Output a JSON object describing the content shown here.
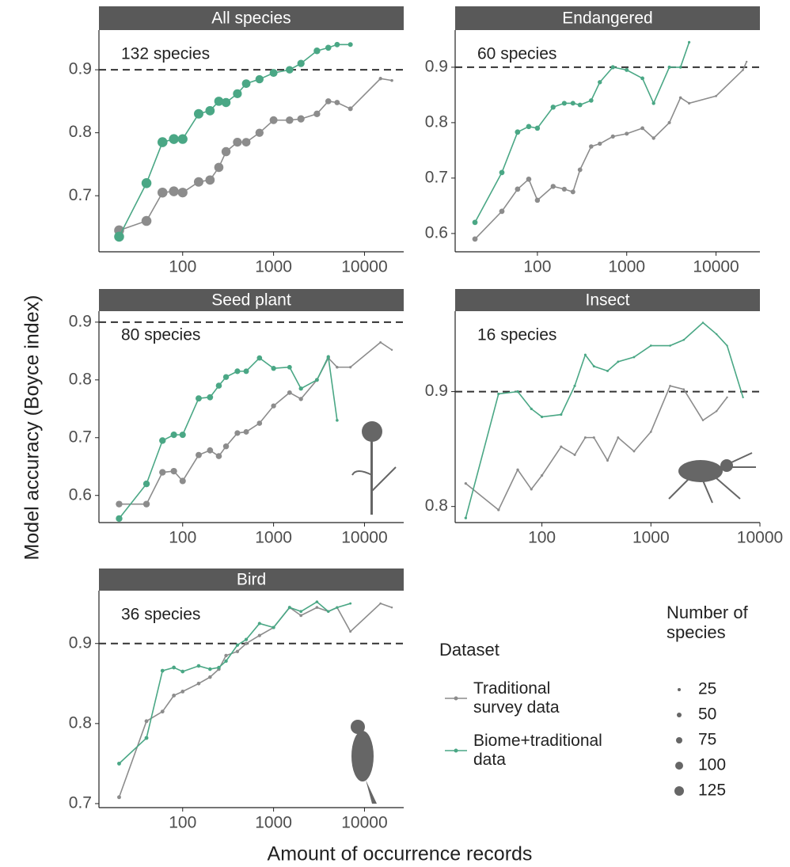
{
  "y_label": "Model accuracy (Boyce index)",
  "x_label": "Amount of occurrence records",
  "legend": {
    "title": "Dataset",
    "size_title": "Number of species",
    "sizes": [
      25,
      50,
      75,
      100,
      125
    ]
  },
  "chart_data": [
    {
      "type": "line",
      "title": "All species",
      "annotation": "132 species",
      "log_x": true,
      "hline": 0.9,
      "xlim": [
        12,
        27000
      ],
      "xticks": [
        100,
        1000,
        10000
      ],
      "ylim": [
        0.611,
        0.963
      ],
      "yticks": [
        0.7,
        0.8,
        0.9
      ],
      "x": [
        20,
        40,
        60,
        80,
        100,
        150,
        200,
        250,
        300,
        400,
        500,
        700,
        1000,
        1500,
        2000,
        3000,
        4000,
        5000,
        7000,
        15000,
        20000
      ],
      "sizes": [
        132,
        132,
        132,
        130,
        128,
        125,
        122,
        120,
        118,
        115,
        110,
        105,
        100,
        95,
        90,
        80,
        70,
        60,
        50,
        30,
        20
      ],
      "series": [
        {
          "name": "Traditional survey data",
          "color": "#8c8c8c",
          "values": [
            0.645,
            0.66,
            0.705,
            0.707,
            0.705,
            0.722,
            0.725,
            0.745,
            0.77,
            0.785,
            0.785,
            0.8,
            0.82,
            0.82,
            0.822,
            0.83,
            0.85,
            0.848,
            0.838,
            0.886,
            0.883
          ]
        },
        {
          "name": "Biome+traditional data",
          "color": "#4aa785",
          "values": [
            0.635,
            0.72,
            0.785,
            0.79,
            0.79,
            0.83,
            0.835,
            0.85,
            0.848,
            0.862,
            0.878,
            0.885,
            0.895,
            0.9,
            0.91,
            0.93,
            0.935,
            0.94,
            0.94,
            null,
            null
          ]
        }
      ]
    },
    {
      "type": "line",
      "title": "Endangered",
      "annotation": "60 species",
      "log_x": true,
      "hline": 0.9,
      "xlim": [
        12,
        31000
      ],
      "xticks": [
        100,
        1000,
        10000
      ],
      "ylim": [
        0.567,
        0.967
      ],
      "yticks": [
        0.6,
        0.7,
        0.8,
        0.9
      ],
      "x": [
        20,
        40,
        60,
        80,
        100,
        150,
        200,
        250,
        300,
        400,
        500,
        700,
        1000,
        1500,
        2000,
        3000,
        4000,
        5000,
        10000,
        20000,
        22000
      ],
      "sizes": [
        60,
        60,
        60,
        58,
        56,
        55,
        52,
        50,
        48,
        45,
        42,
        40,
        38,
        35,
        30,
        25,
        20,
        15,
        10,
        8,
        5
      ],
      "series": [
        {
          "name": "Traditional survey data",
          "color": "#8c8c8c",
          "values": [
            0.59,
            0.64,
            0.68,
            0.698,
            0.66,
            0.685,
            0.68,
            0.675,
            0.715,
            0.757,
            0.762,
            0.775,
            0.78,
            0.79,
            0.772,
            0.8,
            0.845,
            0.835,
            0.848,
            0.895,
            0.91
          ]
        },
        {
          "name": "Biome+traditional data",
          "color": "#4aa785",
          "values": [
            0.62,
            0.71,
            0.783,
            0.793,
            0.79,
            0.828,
            0.835,
            0.835,
            0.832,
            0.84,
            0.873,
            0.9,
            0.895,
            0.88,
            0.835,
            0.9,
            0.9,
            0.945,
            null,
            null,
            null
          ]
        }
      ]
    },
    {
      "type": "line",
      "title": "Seed plant",
      "annotation": "80 species",
      "log_x": true,
      "hline": 0.9,
      "xlim": [
        12,
        27000
      ],
      "xticks": [
        100,
        1000,
        10000
      ],
      "ylim": [
        0.553,
        0.919
      ],
      "yticks": [
        0.6,
        0.7,
        0.8,
        0.9
      ],
      "x": [
        20,
        40,
        60,
        80,
        100,
        150,
        200,
        250,
        300,
        400,
        500,
        700,
        1000,
        1500,
        2000,
        3000,
        4000,
        5000,
        7000,
        15000,
        20000
      ],
      "sizes": [
        80,
        80,
        80,
        78,
        76,
        74,
        72,
        70,
        68,
        65,
        62,
        58,
        54,
        48,
        42,
        35,
        28,
        20,
        15,
        10,
        6
      ],
      "series": [
        {
          "name": "Traditional survey data",
          "color": "#8c8c8c",
          "values": [
            0.585,
            0.585,
            0.64,
            0.642,
            0.625,
            0.67,
            0.678,
            0.668,
            0.685,
            0.708,
            0.71,
            0.725,
            0.755,
            0.778,
            0.767,
            0.8,
            0.838,
            0.822,
            0.822,
            0.865,
            0.852
          ]
        },
        {
          "name": "Biome+traditional data",
          "color": "#4aa785",
          "values": [
            0.56,
            0.62,
            0.695,
            0.705,
            0.705,
            0.768,
            0.77,
            0.79,
            0.805,
            0.815,
            0.815,
            0.838,
            0.82,
            0.822,
            0.785,
            0.8,
            0.84,
            0.73,
            null,
            null,
            null
          ]
        }
      ]
    },
    {
      "type": "line",
      "title": "Insect",
      "annotation": "16 species",
      "log_x": true,
      "hline": 0.9,
      "xlim": [
        16,
        10000
      ],
      "xticks": [
        100,
        1000,
        10000
      ],
      "ylim": [
        0.786,
        0.97
      ],
      "yticks": [
        0.8,
        0.9
      ],
      "x": [
        20,
        40,
        60,
        80,
        100,
        150,
        200,
        250,
        300,
        400,
        500,
        700,
        1000,
        1500,
        2000,
        3000,
        4000,
        5000,
        7000
      ],
      "sizes": [
        16,
        16,
        16,
        15,
        15,
        14,
        14,
        13,
        12,
        12,
        11,
        10,
        9,
        8,
        7,
        6,
        5,
        4,
        3
      ],
      "series": [
        {
          "name": "Traditional survey data",
          "color": "#8c8c8c",
          "values": [
            0.82,
            0.797,
            0.832,
            0.815,
            0.827,
            0.852,
            0.845,
            0.86,
            0.86,
            0.84,
            0.86,
            0.848,
            0.865,
            0.905,
            0.902,
            0.875,
            0.883,
            0.895,
            null
          ]
        },
        {
          "name": "Biome+traditional data",
          "color": "#4aa785",
          "values": [
            0.79,
            0.898,
            0.9,
            0.885,
            0.878,
            0.88,
            0.905,
            0.932,
            0.922,
            0.918,
            0.926,
            0.93,
            0.94,
            0.94,
            0.945,
            0.96,
            0.95,
            0.94,
            0.895
          ]
        }
      ]
    },
    {
      "type": "line",
      "title": "Bird",
      "annotation": "36 species",
      "log_x": true,
      "hline": 0.9,
      "xlim": [
        12,
        27000
      ],
      "xticks": [
        100,
        1000,
        10000
      ],
      "ylim": [
        0.695,
        0.966
      ],
      "yticks": [
        0.7,
        0.8,
        0.9
      ],
      "x": [
        20,
        40,
        60,
        80,
        100,
        150,
        200,
        250,
        300,
        400,
        500,
        700,
        1000,
        1500,
        2000,
        3000,
        4000,
        5000,
        7000,
        15000,
        20000
      ],
      "sizes": [
        36,
        36,
        35,
        35,
        34,
        33,
        32,
        31,
        30,
        29,
        28,
        27,
        26,
        24,
        22,
        20,
        18,
        16,
        12,
        8,
        6
      ],
      "series": [
        {
          "name": "Traditional survey data",
          "color": "#8c8c8c",
          "values": [
            0.708,
            0.803,
            0.815,
            0.835,
            0.84,
            0.85,
            0.858,
            0.868,
            0.885,
            0.89,
            0.9,
            0.91,
            0.92,
            0.945,
            0.935,
            0.945,
            0.94,
            0.945,
            0.915,
            0.95,
            0.945
          ]
        },
        {
          "name": "Biome+traditional data",
          "color": "#4aa785",
          "values": [
            0.75,
            0.782,
            0.866,
            0.87,
            0.865,
            0.872,
            0.868,
            0.87,
            0.878,
            0.898,
            0.905,
            0.925,
            0.92,
            0.945,
            0.94,
            0.952,
            0.94,
            0.945,
            0.95,
            null,
            null
          ]
        }
      ]
    }
  ]
}
